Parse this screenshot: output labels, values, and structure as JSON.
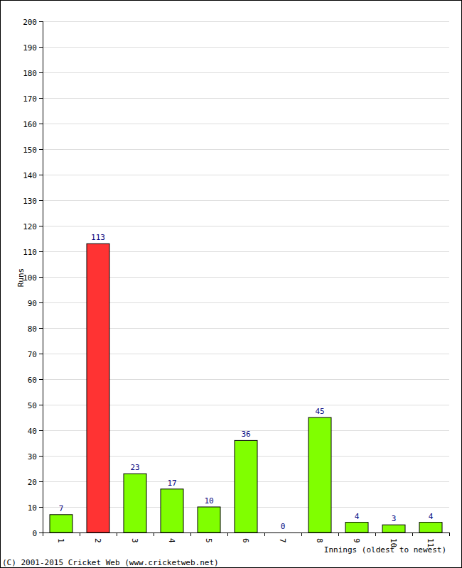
{
  "chart_data": {
    "type": "bar",
    "y_label": "Runs",
    "x_label": "Innings (oldest to newest)",
    "annotations": [
      "(C) 2001-2015 Cricket Web (www.cricketweb.net)"
    ],
    "categories": [
      "1",
      "2",
      "3",
      "4",
      "5",
      "6",
      "7",
      "8",
      "9",
      "10",
      "11"
    ],
    "values": [
      7,
      113,
      23,
      17,
      10,
      36,
      0,
      45,
      4,
      3,
      4
    ],
    "colors": [
      "#80ff00",
      "#ff3333",
      "#80ff00",
      "#80ff00",
      "#80ff00",
      "#80ff00",
      "#80ff00",
      "#80ff00",
      "#80ff00",
      "#80ff00",
      "#80ff00"
    ],
    "ylim": [
      0,
      200
    ],
    "yticks": [
      0,
      10,
      20,
      30,
      40,
      50,
      60,
      70,
      80,
      90,
      100,
      110,
      120,
      130,
      140,
      150,
      160,
      170,
      180,
      190,
      200
    ],
    "grid": true,
    "data_labels": true
  }
}
